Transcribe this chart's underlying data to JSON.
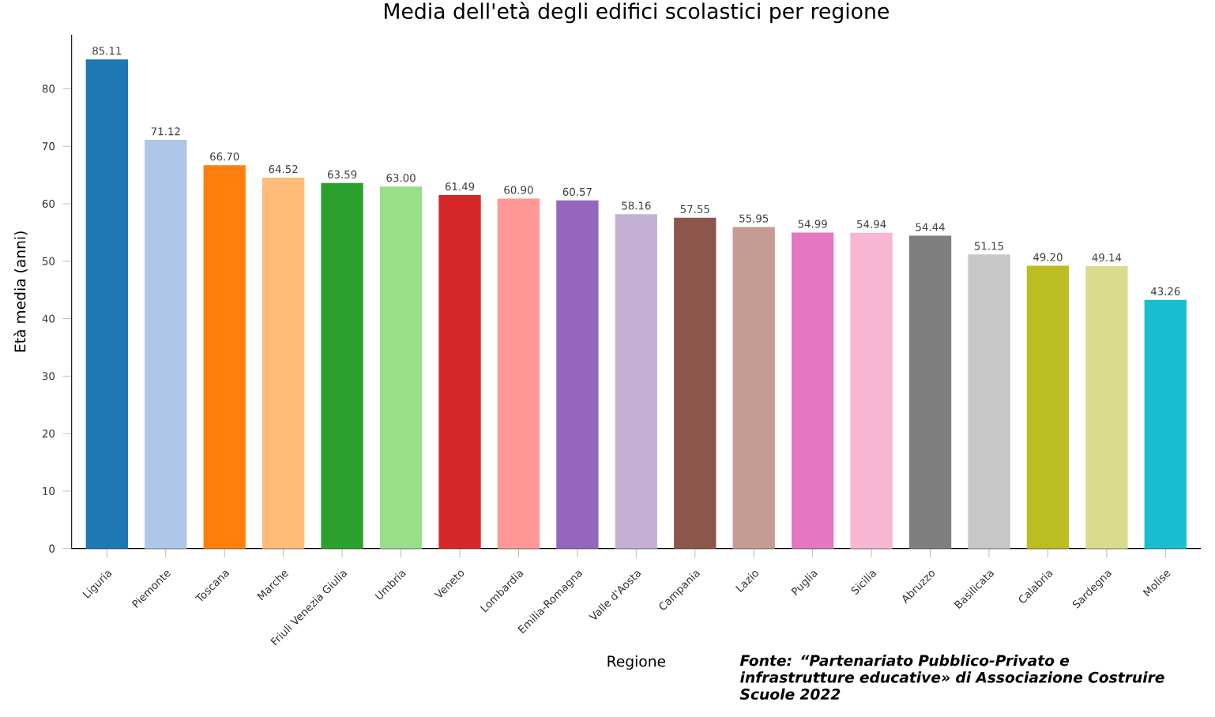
{
  "chart_data": {
    "type": "bar",
    "title": "Media dell'età degli edifici scolastici per regione",
    "xlabel": "Regione",
    "ylabel": "Età media (anni)",
    "categories": [
      "Liguria",
      "Piemonte",
      "Toscana",
      "Marche",
      "Friuli Venezia Giulia",
      "Umbria",
      "Veneto",
      "Lombardia",
      "Emilia-Romagna",
      "Valle d'Aosta",
      "Campania",
      "Lazio",
      "Puglia",
      "Sicilia",
      "Abruzzo",
      "Basilicata",
      "Calabria",
      "Sardegna",
      "Molise"
    ],
    "values": [
      85.11,
      71.12,
      66.7,
      64.52,
      63.59,
      63.0,
      61.49,
      60.9,
      60.57,
      58.16,
      57.55,
      55.95,
      54.99,
      54.94,
      54.44,
      51.15,
      49.2,
      49.14,
      43.26
    ],
    "value_labels": [
      "85.11",
      "71.12",
      "66.70",
      "64.52",
      "63.59",
      "63.00",
      "61.49",
      "60.90",
      "60.57",
      "58.16",
      "57.55",
      "55.95",
      "54.99",
      "54.94",
      "54.44",
      "51.15",
      "49.20",
      "49.14",
      "43.26"
    ],
    "colors": [
      "#1f77b4",
      "#aec7e8",
      "#ff7f0e",
      "#ffbb78",
      "#2ca02c",
      "#98df8a",
      "#d62728",
      "#ff9896",
      "#9467bd",
      "#c5b0d5",
      "#8c564b",
      "#c49c94",
      "#e377c2",
      "#f7b6d2",
      "#7f7f7f",
      "#c7c7c7",
      "#bcbd22",
      "#dbdb8d",
      "#17becf"
    ],
    "ylim": [
      0,
      89.4
    ],
    "yticks": [
      0,
      10,
      20,
      30,
      40,
      50,
      60,
      70,
      80
    ],
    "annotations": [
      "Fonte: “Partenariato Pubblico-Privato e infrastrutture educative» di Associazione Costruire Scuole 2022"
    ]
  }
}
